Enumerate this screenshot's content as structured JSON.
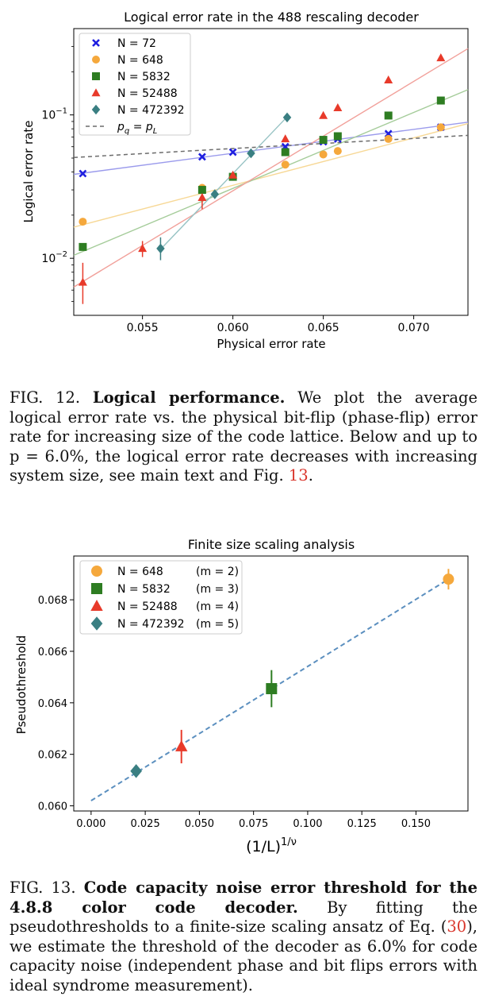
{
  "chart_data": [
    {
      "type": "scatter",
      "title": "Logical error rate in the 488 rescaling decoder",
      "xlabel": "Physical error rate",
      "ylabel": "Logical error rate",
      "y_scale": "log",
      "xlim": [
        0.0512,
        0.073
      ],
      "ylim": [
        0.004,
        0.4
      ],
      "x_ticks": [
        "0.055",
        "0.060",
        "0.065",
        "0.070"
      ],
      "x_tick_values": [
        0.055,
        0.06,
        0.065,
        0.07
      ],
      "y_ticks": [
        {
          "base": "10",
          "exp": "−2",
          "value": 0.01
        },
        {
          "base": "10",
          "exp": "−1",
          "value": 0.1
        }
      ],
      "grid": false,
      "legend": "top-left",
      "series": [
        {
          "name": "N = 72",
          "marker": "x",
          "color": "#1f1fe0",
          "line_color": "#9b9bec",
          "fit": [
            [
              0.0512,
              0.0385
            ],
            [
              0.073,
              0.089
            ]
          ],
          "points": [
            [
              0.0517,
              0.039
            ],
            [
              0.0583,
              0.051
            ],
            [
              0.06,
              0.055
            ],
            [
              0.0629,
              0.06
            ],
            [
              0.065,
              0.065
            ],
            [
              0.0658,
              0.068
            ],
            [
              0.0686,
              0.074
            ],
            [
              0.0715,
              0.082
            ]
          ]
        },
        {
          "name": "N = 648",
          "marker": "o",
          "color": "#f5a83c",
          "line_color": "#f7d896",
          "fit": [
            [
              0.0512,
              0.0165
            ],
            [
              0.073,
              0.087
            ]
          ],
          "points": [
            [
              0.0517,
              0.018
            ],
            [
              0.0583,
              0.031
            ],
            [
              0.06,
              0.037
            ],
            [
              0.0629,
              0.045
            ],
            [
              0.065,
              0.053
            ],
            [
              0.0658,
              0.056
            ],
            [
              0.0686,
              0.068
            ],
            [
              0.0715,
              0.082
            ]
          ]
        },
        {
          "name": "N = 5832",
          "marker": "s",
          "color": "#2e7d22",
          "line_color": "#a5cc9a",
          "fit": [
            [
              0.0512,
              0.0105
            ],
            [
              0.073,
              0.15
            ]
          ],
          "points": [
            [
              0.0517,
              0.012
            ],
            [
              0.0583,
              0.03
            ],
            [
              0.06,
              0.037
            ],
            [
              0.0629,
              0.055
            ],
            [
              0.065,
              0.067
            ],
            [
              0.0658,
              0.071
            ],
            [
              0.0686,
              0.099
            ],
            [
              0.0715,
              0.126
            ]
          ]
        },
        {
          "name": "N = 52488",
          "marker": "^",
          "color": "#e83a2a",
          "line_color": "#f1a09a",
          "fit": [
            [
              0.0512,
              0.0063
            ],
            [
              0.073,
              0.29
            ]
          ],
          "points": [
            [
              0.0517,
              0.0068
            ],
            [
              0.055,
              0.0117
            ],
            [
              0.0583,
              0.0265
            ],
            [
              0.06,
              0.038
            ],
            [
              0.0629,
              0.068
            ],
            [
              0.065,
              0.099
            ],
            [
              0.0658,
              0.112
            ],
            [
              0.0686,
              0.175
            ],
            [
              0.0715,
              0.25
            ]
          ]
        },
        {
          "name": "N = 472392",
          "marker": "D",
          "color": "#3a7f82",
          "line_color": "#97c3c4",
          "fit": [
            [
              0.0559,
              0.0112
            ],
            [
              0.063,
              0.097
            ]
          ],
          "points": [
            [
              0.056,
              0.0117
            ],
            [
              0.059,
              0.028
            ],
            [
              0.061,
              0.054
            ],
            [
              0.063,
              0.096
            ]
          ]
        },
        {
          "name": "$p_q = p_L$",
          "label_main": "p",
          "label_sub1": "q",
          "label_mid": " = p",
          "label_sub2": "L",
          "marker": "dashed",
          "color": "#6b6b6b",
          "fit": [
            [
              0.0512,
              0.0505
            ],
            [
              0.073,
              0.072
            ]
          ]
        }
      ]
    },
    {
      "type": "scatter",
      "title": "Finite size scaling analysis",
      "xlabel_main": "(1/L)",
      "xlabel_sup": "1/ν",
      "ylabel": "Pseudothreshold",
      "xlim": [
        -0.008,
        0.174
      ],
      "ylim": [
        0.0598,
        0.0697
      ],
      "x_ticks": [
        "0.000",
        "0.025",
        "0.050",
        "0.075",
        "0.100",
        "0.125",
        "0.150"
      ],
      "x_tick_values": [
        0,
        0.025,
        0.05,
        0.075,
        0.1,
        0.125,
        0.15
      ],
      "y_ticks": [
        "0.060",
        "0.062",
        "0.064",
        "0.066",
        "0.068"
      ],
      "y_tick_values": [
        0.06,
        0.062,
        0.064,
        0.066,
        0.068
      ],
      "grid": false,
      "legend": "top-left",
      "fit_line": [
        [
          0,
          0.0602
        ],
        [
          0.165,
          0.0688
        ]
      ],
      "fit_color": "#5b8fbf",
      "series": [
        {
          "name": "N = 648",
          "m": "(m = 2)",
          "marker": "o",
          "color": "#f5a83c",
          "x": 0.165,
          "y": 0.0688,
          "err": 0.0004
        },
        {
          "name": "N = 5832",
          "m": "(m = 3)",
          "marker": "s",
          "color": "#2e7d22",
          "x": 0.0833,
          "y": 0.06455,
          "err": 0.00072
        },
        {
          "name": "N = 52488",
          "m": "(m = 4)",
          "marker": "^",
          "color": "#e83a2a",
          "x": 0.0417,
          "y": 0.0623,
          "err": 0.00065
        },
        {
          "name": "N = 472392",
          "m": "(m = 5)",
          "marker": "D",
          "color": "#3a7f82",
          "x": 0.0208,
          "y": 0.06135,
          "err": 0.0001
        }
      ]
    }
  ],
  "captions": {
    "fig12": {
      "label": "FIG. 12.",
      "bold": "Logical performance.",
      "text": "We plot the average logical error rate vs. the physical bit-flip (phase-flip) error rate for increasing size of the code lattice. Below and up to p = 6.0%, the logical error rate decreases with increasing system size, see main text and Fig.",
      "ref": "13",
      "end": "."
    },
    "fig13": {
      "label": "FIG. 13.",
      "bold": "Code capacity noise error threshold for the 4.8.8 color code decoder.",
      "text_a": "By fitting the pseudothresholds to a finite-size scaling ansatz of Eq. (",
      "ref": "30",
      "text_b": "), we estimate the threshold of the decoder as 6.0% for code capacity noise (independent phase and bit flips errors with ideal syndrome measurement)."
    }
  }
}
